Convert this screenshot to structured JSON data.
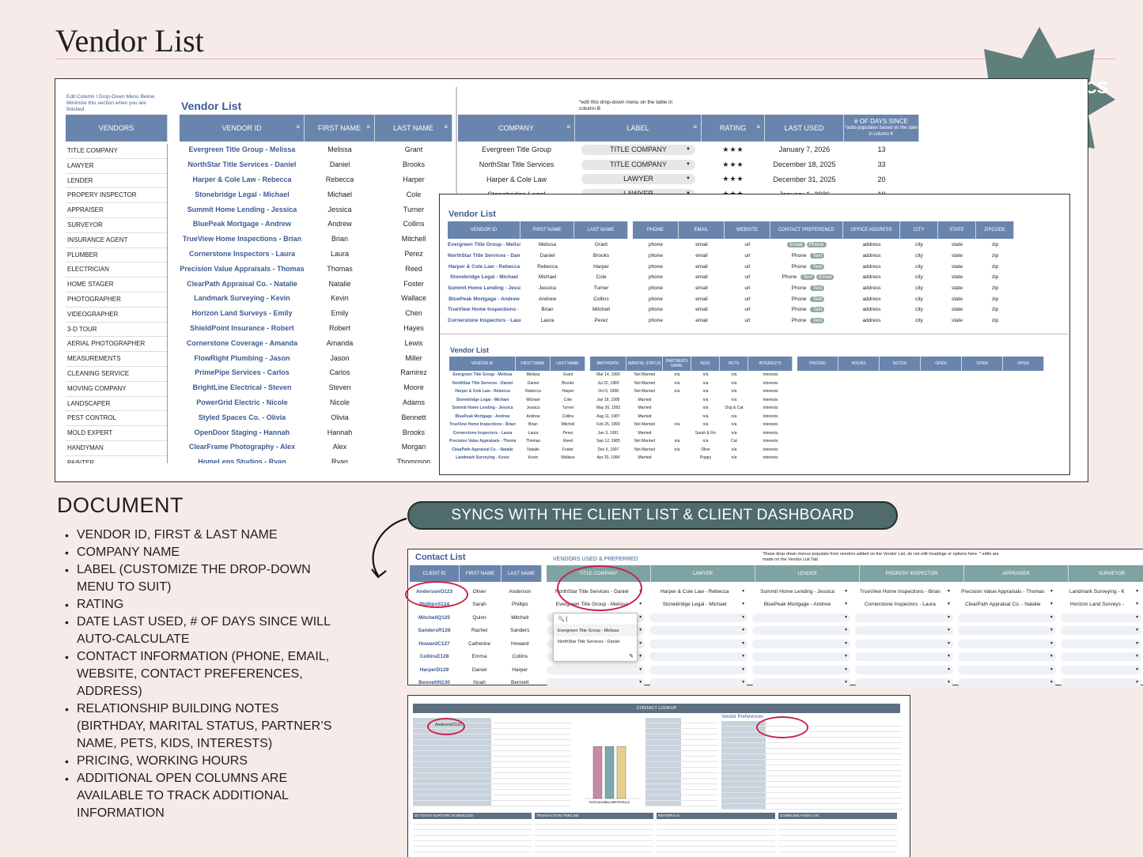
{
  "page_title": "Vendor List",
  "badge": "THIS TAB SYNCS",
  "main_sheet": {
    "note_left": "Edit Column I Drop-Down Menu Below Minimize this section when you are finished.",
    "vendors_header": "VENDORS",
    "vendor_types": [
      "TITLE COMPANY",
      "LAWYER",
      "LENDER",
      "PROPERY INSPECTOR",
      "APPRAISER",
      "SURVEYOR",
      "INSURANCE AGENT",
      "PLUMBER",
      "ELECTRICIAN",
      "HOME STAGER",
      "PHOTOGRAPHER",
      "VIDEOGRAPHER",
      "3-D TOUR",
      "AERIAL PHOTOGRAPHER",
      "MEASUREMENTS",
      "CLEANING SERVICE",
      "MOVING COMPANY",
      "LANDSCAPER",
      "PEST CONTROL",
      "MOLD EXPERT",
      "HANDYMAN",
      "PAINTER"
    ],
    "list_title": "Vendor List",
    "note_right": "*edit this drop-down menu on the table in column B",
    "headers": [
      "VENDOR ID",
      "FIRST NAME",
      "LAST NAME",
      "COMPANY",
      "LABEL",
      "RATING",
      "LAST USED",
      "# OF DAYS SINCE",
      "*auto-populates based on the date in column K"
    ],
    "rows": [
      [
        "Evergreen Title Group - Melissa",
        "Melissa",
        "Grant",
        "Evergreen Title Group",
        "TITLE COMPANY",
        "★★★",
        "January 7, 2026",
        "13"
      ],
      [
        "NorthStar Title Services - Daniel",
        "Daniel",
        "Brooks",
        "NorthStar Title Services",
        "TITLE COMPANY",
        "★★★",
        "December 18, 2025",
        "33"
      ],
      [
        "Harper & Cole Law - Rebecca",
        "Rebecca",
        "Harper",
        "Harper & Cole Law",
        "LAWYER",
        "★★★",
        "December 31, 2025",
        "20"
      ],
      [
        "Stonebridge Legal - Michael",
        "Michael",
        "Cole",
        "Stonebridge Legal",
        "LAWYER",
        "★★★",
        "January 1, 2026",
        "19"
      ],
      [
        "Summit Home Lending - Jessica",
        "Jessica",
        "Turner",
        "",
        "",
        "",
        "",
        ""
      ],
      [
        "BluePeak Mortgage - Andrew",
        "Andrew",
        "Collins",
        "",
        "",
        "",
        "",
        ""
      ],
      [
        "TrueView Home Inspections - Brian",
        "Brian",
        "Mitchell",
        "",
        "",
        "",
        "",
        ""
      ],
      [
        "Cornerstone Inspectors - Laura",
        "Laura",
        "Perez",
        "",
        "",
        "",
        "",
        ""
      ],
      [
        "Precision Value Appraisals - Thomas",
        "Thomas",
        "Reed",
        "",
        "",
        "",
        "",
        ""
      ],
      [
        "ClearPath Appraisal Co. - Natalie",
        "Natalie",
        "Foster",
        "",
        "",
        "",
        "",
        ""
      ],
      [
        "Landmark Surveying - Kevin",
        "Kevin",
        "Wallace",
        "",
        "",
        "",
        "",
        ""
      ],
      [
        "Horizon Land Surveys - Emily",
        "Emily",
        "Chen",
        "",
        "",
        "",
        "",
        ""
      ],
      [
        "ShieldPoint Insurance - Robert",
        "Robert",
        "Hayes",
        "",
        "",
        "",
        "",
        ""
      ],
      [
        "Cornerstone Coverage - Amanda",
        "Amanda",
        "Lewis",
        "",
        "",
        "",
        "",
        ""
      ],
      [
        "FlowRight Plumbing - Jason",
        "Jason",
        "Miller",
        "",
        "",
        "",
        "",
        ""
      ],
      [
        "PrimePipe Services - Carlos",
        "Carlos",
        "Ramirez",
        "",
        "",
        "",
        "",
        ""
      ],
      [
        "BrightLine Electrical - Steven",
        "Steven",
        "Moore",
        "",
        "",
        "",
        "",
        ""
      ],
      [
        "PowerGrid Electric - Nicole",
        "Nicole",
        "Adams",
        "",
        "",
        "",
        "",
        ""
      ],
      [
        "Styled Spaces Co. - Olivia",
        "Olivia",
        "Bennett",
        "",
        "",
        "",
        "",
        ""
      ],
      [
        "OpenDoor Staging - Hannah",
        "Hannah",
        "Brooks",
        "",
        "",
        "",
        "",
        ""
      ],
      [
        "ClearFrame Photography - Alex",
        "Alex",
        "Morgan",
        "",
        "",
        "",
        "",
        ""
      ],
      [
        "HomeLens Studios - Ryan",
        "Ryan",
        "Thompson",
        "",
        "",
        "",
        "",
        ""
      ]
    ]
  },
  "contact_sheet": {
    "title": "Vendor List",
    "headers": [
      "VENDOR ID",
      "FIRST NAME",
      "LAST NAME",
      "PHONE",
      "EMAIL",
      "WEBSITE",
      "CONTACT PREFERENCE",
      "OFFICE ADDRESS",
      "CITY",
      "STATE",
      "ZIPCODE"
    ],
    "rows": [
      [
        "Evergreen Title Group - Melissa",
        "Melissa",
        "Grant",
        "phone",
        "email",
        "url",
        "Email Phone",
        "address",
        "city",
        "state",
        "zip"
      ],
      [
        "NorthStar Title Services - Daniel",
        "Daniel",
        "Brooks",
        "phone",
        "email",
        "url",
        "Phone Text",
        "address",
        "city",
        "state",
        "zip"
      ],
      [
        "Harper & Cole Law - Rebecca",
        "Rebecca",
        "Harper",
        "phone",
        "email",
        "url",
        "Phone Text",
        "address",
        "city",
        "state",
        "zip"
      ],
      [
        "Stonebridge Legal - Michael",
        "Michael",
        "Cole",
        "phone",
        "email",
        "url",
        "Phone Text Email",
        "address",
        "city",
        "state",
        "zip"
      ],
      [
        "Summit Home Lending - Jessica",
        "Jessica",
        "Turner",
        "phone",
        "email",
        "url",
        "Phone Text",
        "address",
        "city",
        "state",
        "zip"
      ],
      [
        "BluePeak Mortgage - Andrew",
        "Andrew",
        "Collins",
        "phone",
        "email",
        "url",
        "Phone Text",
        "address",
        "city",
        "state",
        "zip"
      ],
      [
        "TrueView Home Inspections - Brian",
        "Brian",
        "Mitchell",
        "phone",
        "email",
        "url",
        "Phone Text",
        "address",
        "city",
        "state",
        "zip"
      ],
      [
        "Cornerstone Inspectors - Laura",
        "Laura",
        "Perez",
        "phone",
        "email",
        "url",
        "Phone Text",
        "address",
        "city",
        "state",
        "zip"
      ]
    ]
  },
  "relationship_sheet": {
    "title": "Vendor List",
    "headers": [
      "VENDOR ID",
      "FIRST NAME",
      "LAST NAME",
      "BIRTHDATE",
      "MARITAL STATUS",
      "PARTNER'S NAME",
      "KIDS",
      "PETS",
      "INTERESTS",
      "PRICING",
      "HOURS",
      "NOTES",
      "OPEN",
      "OPEN",
      "OPEN"
    ],
    "rows": [
      [
        "Evergreen Title Group - Melissa",
        "Melissa",
        "Grant",
        "Mar 14, 1990",
        "Not Married",
        "n/a",
        "n/a",
        "n/a",
        "interests"
      ],
      [
        "NorthStar Title Services - Daniel",
        "Daniel",
        "Brooks",
        "Jul 22, 1983",
        "Not Married",
        "n/a",
        "n/a",
        "n/a",
        "interests"
      ],
      [
        "Harper & Cole Law - Rebecca",
        "Rebecca",
        "Harper",
        "Oct 5, 1998",
        "Not Married",
        "n/a",
        "n/a",
        "n/a",
        "interests"
      ],
      [
        "Stonebridge Legal - Michael",
        "Michael",
        "Cole",
        "Jan 18, 1995",
        "Married",
        "",
        "n/a",
        "n/a",
        "interests"
      ],
      [
        "Summit Home Lending - Jessica",
        "Jessica",
        "Turner",
        "May 30, 1992",
        "Married",
        "",
        "n/a",
        "Dog & Cat",
        "interests"
      ],
      [
        "BluePeak Mortgage - Andrew",
        "Andrew",
        "Collins",
        "Aug 11, 1987",
        "Married",
        "",
        "n/a",
        "n/a",
        "interests"
      ],
      [
        "TrueView Home Inspections - Brian",
        "Brian",
        "Mitchell",
        "Feb 25, 1999",
        "Not Married",
        "n/a",
        "n/a",
        "n/a",
        "interests"
      ],
      [
        "Cornerstone Inspectors - Laura",
        "Laura",
        "Perez",
        "Jan 3, 1991",
        "Married",
        "",
        "Sarah & Fin",
        "n/a",
        "interests"
      ],
      [
        "Precision Value Appraisals - Thomas",
        "Thomas",
        "Reed",
        "Sep 12, 1985",
        "Not Married",
        "n/a",
        "n/a",
        "Cat",
        "interests"
      ],
      [
        "ClearPath Appraisal Co. - Natalie",
        "Natalie",
        "Foster",
        "Dec 6, 1997",
        "Not Married",
        "n/a",
        "Olive",
        "n/a",
        "interests"
      ],
      [
        "Landmark Surveying - Kevin",
        "Kevin",
        "Wallace",
        "Apr 20, 1994",
        "Married",
        "",
        "Poppy",
        "n/a",
        "interests"
      ]
    ]
  },
  "document": {
    "heading": "DOCUMENT",
    "items": [
      "VENDOR ID, FIRST & LAST NAME",
      "COMPANY NAME",
      "LABEL (CUSTOMIZE THE DROP-DOWN MENU TO SUIT)",
      "RATING",
      "DATE LAST USED, # OF DAYS SINCE WILL AUTO-CALCULATE",
      "CONTACT INFORMATION (PHONE, EMAIL, WEBSITE, CONTACT PREFERENCES, ADDRESS)",
      "RELATIONSHIP BUILDING NOTES (BIRTHDAY, MARITAL STATUS, PARTNER’S NAME, PETS, KIDS, INTERESTS)",
      "PRICING, WORKING HOURS",
      "ADDITIONAL OPEN COLUMNS ARE AVAILABLE TO TRACK ADDITIONAL INFORMATION"
    ]
  },
  "sync_banner": "SYNCS WITH THE CLIENT LIST & CLIENT DASHBOARD",
  "client_list": {
    "title": "Contact List",
    "subtitle": "VENDORS USED & PREFERRED",
    "note": "*these drop-down menus populate from vendors added on the Vendor List, do not edit headings or options here. * edits are made on the Vendor List Tab",
    "headers": [
      "CLIENT ID",
      "FIRST NAME",
      "LAST NAME",
      "TITLE COMPANY",
      "LAWYER",
      "LENDER",
      "PROPERY INSPECTOR",
      "APPRAISER",
      "SURVEYOR"
    ],
    "rows": [
      [
        "AndersonO123",
        "Oliver",
        "Anderson",
        "NorthStar Title Services - Daniel",
        "Harper & Cole Law - Rebecca",
        "Summit Home Lending - Jessica",
        "TrueView Home Inspections - Brian",
        "Precision Value Appraisals - Thomas",
        "Landmark Surveying - K"
      ],
      [
        "PhillipsS124",
        "Sarah",
        "Phillips",
        "Evergreen Title Group - Melissa",
        "Stonebridge Legal - Michael",
        "BluePeak Mortgage - Andrew",
        "Cornerstone Inspectors - Laura",
        "ClearPath Appraisal Co. - Natalie",
        "Horizon Land Surveys -"
      ],
      [
        "MitchellQ125",
        "Quinn",
        "Mitchell",
        "",
        "",
        "",
        "",
        "",
        ""
      ],
      [
        "SandersR126",
        "Rachel",
        "Sanders",
        "",
        "",
        "",
        "",
        "",
        ""
      ],
      [
        "HowardC127",
        "Catherine",
        "Howard",
        "",
        "",
        "",
        "",
        "",
        ""
      ],
      [
        "CollinsE128",
        "Emma",
        "Collins",
        "",
        "",
        "",
        "",
        "",
        ""
      ],
      [
        "HarperD129",
        "Daniel",
        "Harper",
        "",
        "",
        "",
        "",
        "",
        ""
      ],
      [
        "BennettN130",
        "Noah",
        "Bennett",
        "",
        "",
        "",
        "",
        "",
        ""
      ]
    ],
    "dropdown_options": [
      "Evergreen Title Group - Melissa",
      "NorthStar Title Services - Daniel"
    ]
  },
  "dashboard": {
    "header": "CONTACT LOOKUP",
    "vendor_pref_title": "Vendor Preferences",
    "client_id": "AndersonO123",
    "chart_data": {
      "type": "bar",
      "categories": [
        "PURCHASES",
        "SALES",
        "REFERRALS"
      ],
      "values": [
        1,
        1,
        1
      ],
      "ylim": [
        0,
        1.4
      ]
    },
    "sections": [
      "20 TOUCH NURTURE SCHEDULED",
      "TRANSACTION TIMELINE",
      "REFERRALS",
      "COMMUNICATION LOG"
    ]
  },
  "colors": {
    "header_blue": "#6a85ad",
    "badge_green": "#5f7f7a",
    "pill_green": "#4f6b6b",
    "highlight_red": "#c8224a",
    "page_bg": "#f7ebea"
  }
}
